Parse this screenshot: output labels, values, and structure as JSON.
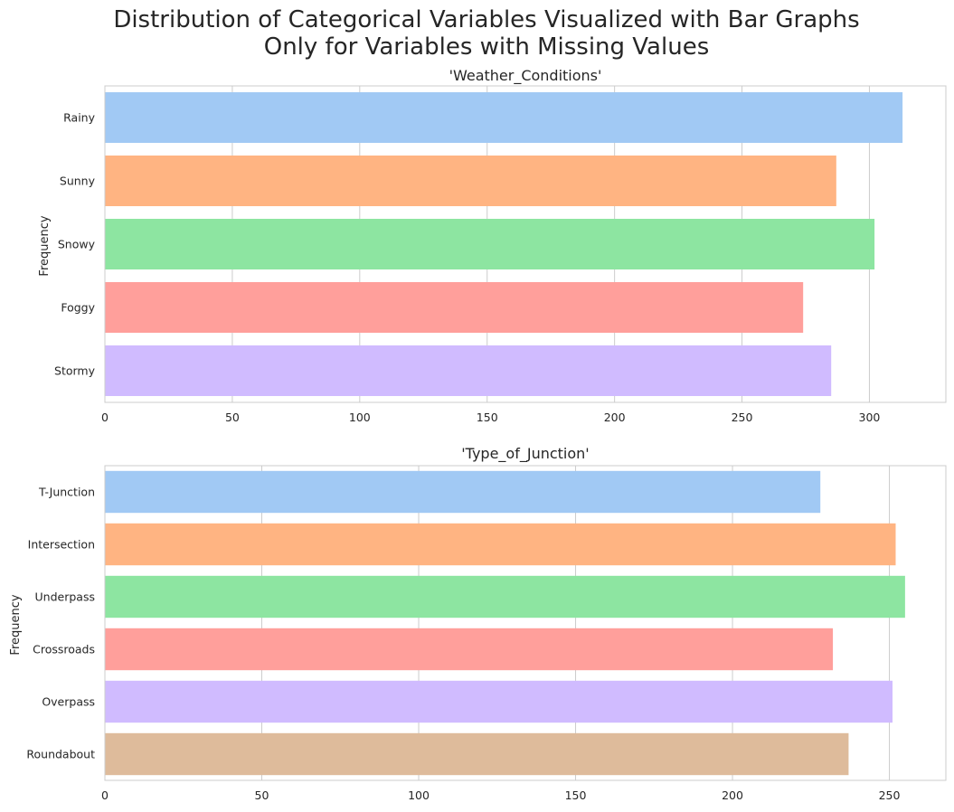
{
  "suptitle": {
    "line1": "Distribution of Categorical Variables Visualized with Bar Graphs",
    "line2": "Only for Variables with Missing Values"
  },
  "colors": {
    "grid": "#cccccc",
    "axis": "#cccccc",
    "text": "#262626"
  },
  "chart_data": [
    {
      "type": "bar",
      "orientation": "horizontal",
      "title": "'Weather_Conditions'",
      "ylabel": "Frequency",
      "xlabel": "",
      "categories": [
        "Rainy",
        "Sunny",
        "Snowy",
        "Foggy",
        "Stormy"
      ],
      "values": [
        313,
        287,
        302,
        274,
        285
      ],
      "colors": [
        "#a1c9f4",
        "#ffb482",
        "#8de5a1",
        "#ff9f9b",
        "#d0bbff"
      ],
      "xlim": [
        0,
        330
      ],
      "xticks": [
        0,
        50,
        100,
        150,
        200,
        250,
        300
      ],
      "grid": "vertical"
    },
    {
      "type": "bar",
      "orientation": "horizontal",
      "title": "'Type_of_Junction'",
      "ylabel": "Frequency",
      "xlabel": "",
      "categories": [
        "T-Junction",
        "Intersection",
        "Underpass",
        "Crossroads",
        "Overpass",
        "Roundabout"
      ],
      "values": [
        228,
        252,
        255,
        232,
        251,
        237
      ],
      "colors": [
        "#a1c9f4",
        "#ffb482",
        "#8de5a1",
        "#ff9f9b",
        "#d0bbff",
        "#debb9b"
      ],
      "xlim": [
        0,
        268
      ],
      "xticks": [
        0,
        50,
        100,
        150,
        200,
        250
      ],
      "grid": "vertical"
    }
  ]
}
